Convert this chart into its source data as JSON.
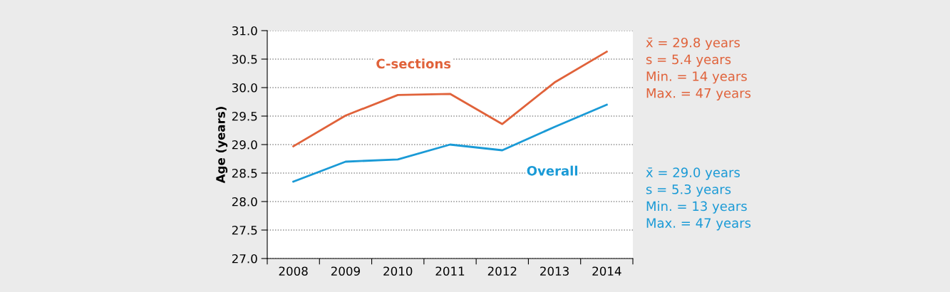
{
  "chart_data": {
    "type": "line",
    "ylabel": "Age (years)",
    "categories": [
      "2008",
      "2009",
      "2010",
      "2011",
      "2012",
      "2013",
      "2014"
    ],
    "series": [
      {
        "name": "C-sections",
        "color": "#e0623a",
        "values": [
          28.97,
          29.51,
          29.87,
          29.89,
          29.36,
          30.09,
          30.63
        ]
      },
      {
        "name": "Overall",
        "color": "#1a9ad6",
        "values": [
          28.35,
          28.7,
          28.74,
          29.0,
          28.9,
          29.31,
          29.7
        ]
      }
    ],
    "ylim": [
      27.0,
      31.0
    ],
    "yticks": [
      {
        "value": 27.0,
        "label": "27.0"
      },
      {
        "value": 27.5,
        "label": "27.5"
      },
      {
        "value": 28.0,
        "label": "28.0"
      },
      {
        "value": 28.5,
        "label": "28.5"
      },
      {
        "value": 29.0,
        "label": "29.0"
      },
      {
        "value": 29.5,
        "label": "29.5"
      },
      {
        "value": 30.0,
        "label": "30.0"
      },
      {
        "value": 30.5,
        "label": "30.5"
      },
      {
        "value": 31.0,
        "label": "31.0"
      }
    ],
    "grid": "y",
    "legend": false,
    "marker": "none",
    "line_style": "solid",
    "annotations": [
      "x̄ = 29.8 years\ns = 5.4 years\nMin. = 14 years\nMax. = 47 years",
      "x̄ = 29.0 years\ns = 5.3 years\nMin. = 13 years\nMax. = 47 years"
    ]
  }
}
